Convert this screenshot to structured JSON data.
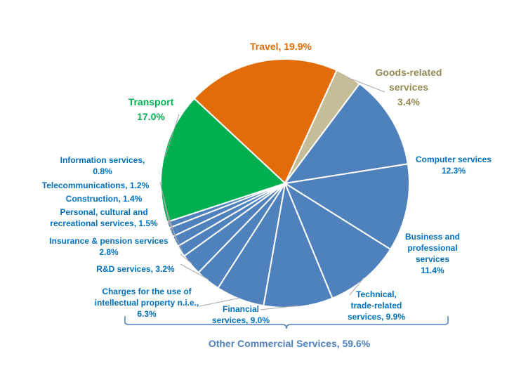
{
  "chart_data": {
    "type": "pie",
    "title": "",
    "slices": [
      {
        "name": "Travel",
        "value": 19.9,
        "color": "#e36c0a",
        "label_lines": [
          "Travel, 19.9%"
        ]
      },
      {
        "name": "Goods-related services",
        "value": 3.4,
        "color": "#c4bd97",
        "label_lines": [
          "Goods-related",
          "services",
          "3.4%"
        ]
      },
      {
        "name": "Computer services",
        "value": 12.3,
        "color": "#4f81bd",
        "label_lines": [
          "Computer services",
          "12.3%"
        ]
      },
      {
        "name": "Business and professional services",
        "value": 11.4,
        "color": "#4f81bd",
        "label_lines": [
          "Business and",
          "professional",
          "services",
          "11.4%"
        ]
      },
      {
        "name": "Technical, trade-related services",
        "value": 9.9,
        "color": "#4f81bd",
        "label_lines": [
          "Technical,",
          "trade-related",
          "services, 9.9%"
        ]
      },
      {
        "name": "Financial services",
        "value": 9.0,
        "color": "#4f81bd",
        "label_lines": [
          "Financial",
          "services, 9.0%"
        ]
      },
      {
        "name": "Charges for the use of intellectual property n.i.e.",
        "value": 6.3,
        "color": "#4f81bd",
        "label_lines": [
          "Charges for the use of",
          "intellectual property n.i.e.,",
          "6.3%"
        ]
      },
      {
        "name": "R&D services",
        "value": 3.2,
        "color": "#4f81bd",
        "label_lines": [
          "R&D services, 3.2%"
        ]
      },
      {
        "name": "Insurance & pension services",
        "value": 2.8,
        "color": "#4f81bd",
        "label_lines": [
          "Insurance & pension services",
          "2.8%"
        ]
      },
      {
        "name": "Personal, cultural and recreational services",
        "value": 1.5,
        "color": "#4f81bd",
        "label_lines": [
          "Personal, cultural and",
          "recreational services, 1.5%"
        ]
      },
      {
        "name": "Construction",
        "value": 1.4,
        "color": "#4f81bd",
        "label_lines": [
          "Construction, 1.4%"
        ]
      },
      {
        "name": "Telecommunications",
        "value": 1.2,
        "color": "#4f81bd",
        "label_lines": [
          "Telecommunications, 1.2%"
        ]
      },
      {
        "name": "Information services",
        "value": 0.8,
        "color": "#4f81bd",
        "label_lines": [
          "Information services,",
          "0.8%"
        ]
      },
      {
        "name": "Transport",
        "value": 17.0,
        "color": "#00b050",
        "label_lines": [
          "Transport",
          "17.0%"
        ]
      }
    ],
    "group": {
      "label": "Other Commercial Services, 59.6%",
      "color": "#4f81bd"
    },
    "label_colors": {
      "Travel": "#e36c0a",
      "Goods-related services": "#948a54",
      "Transport": "#00b050",
      "other": "#0070c0"
    },
    "legend": "none"
  }
}
